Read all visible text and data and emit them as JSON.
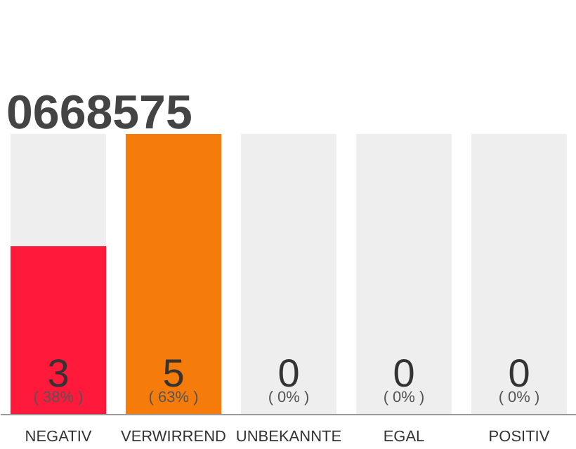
{
  "chart_data": {
    "type": "bar",
    "title": "0668575",
    "categories": [
      "NEGATIV",
      "VERWIRREND",
      "UNBEKANNTE",
      "EGAL",
      "POSITIV"
    ],
    "values": [
      3,
      5,
      0,
      0,
      0
    ],
    "colors": [
      "#ff1a3c",
      "#f57c0a",
      "#cccccc",
      "#cccccc",
      "#cccccc"
    ],
    "value_labels": [
      "3",
      "5",
      "0",
      "0",
      "0"
    ],
    "annotations": [
      {
        "text": "( 38% )",
        "x": "NEGATIV",
        "y": 0
      },
      {
        "text": "( 63% )",
        "x": "VERWIRREND",
        "y": 0
      },
      {
        "text": "( 0% )",
        "x": "UNBEKANNTE",
        "y": 0
      },
      {
        "text": "( 0% )",
        "x": "EGAL",
        "y": 0
      },
      {
        "text": "( 0% )",
        "x": "POSITIV",
        "y": 0
      }
    ],
    "grid": "x"
  }
}
